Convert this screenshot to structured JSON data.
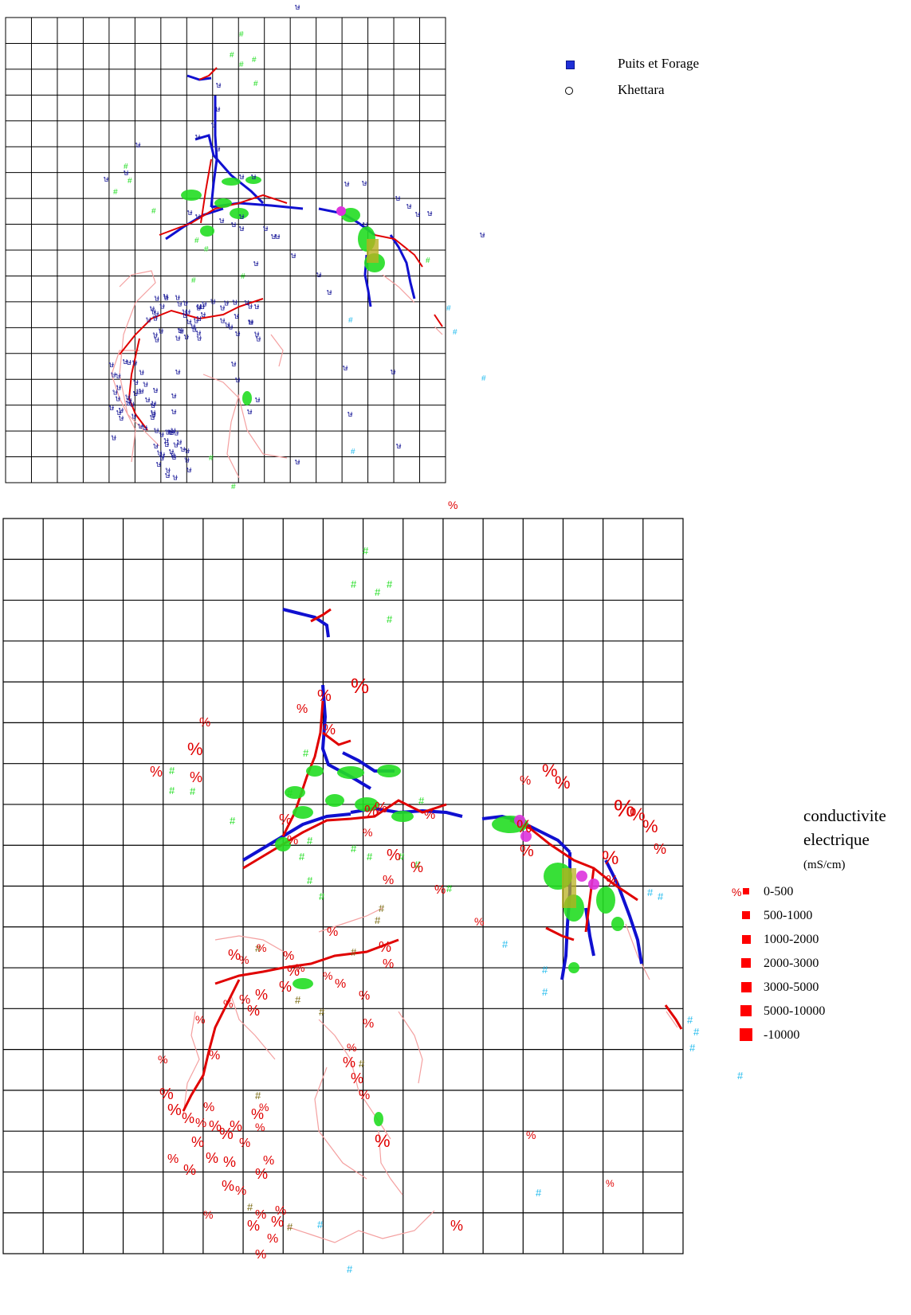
{
  "legend_top": {
    "items": [
      {
        "label": "Puits et Forage",
        "symbol": "square-icon",
        "color": "#1f2fd6"
      },
      {
        "label": "Khettara",
        "symbol": "circle-icon",
        "color": "#000000"
      }
    ]
  },
  "legend_bottom": {
    "title_line1": "conductivite",
    "title_line2": "electrique",
    "unit": "(mS/cm)",
    "classes": [
      "0-500",
      "500-1000",
      "1000-2000",
      "2000-3000",
      "3000-5000",
      "5000-10000",
      "-10000"
    ],
    "symbol_color": "#ff0000"
  },
  "map_symbols": {
    "well_glyph": "ษ",
    "vegetation_glyph": "#",
    "conductivity_glyph": "%",
    "colors": {
      "river_blue": "#1010d0",
      "river_red": "#e00000",
      "track_pink": "#f4a0a0",
      "vegetation_green": "#22dd22",
      "vegetation_olive": "#7a6a10",
      "cyan": "#22bbee",
      "magenta": "#dd33dd",
      "olive_fill": "#b8b020"
    }
  }
}
